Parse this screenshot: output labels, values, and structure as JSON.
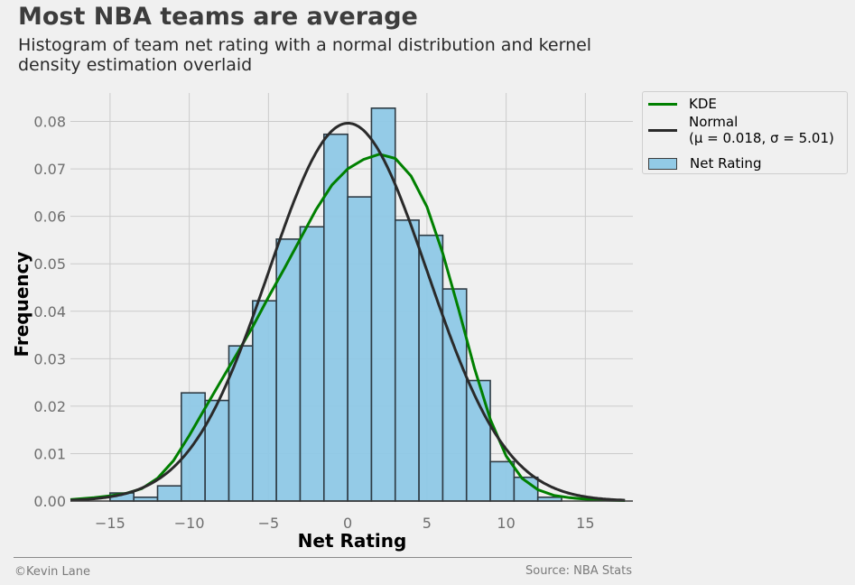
{
  "header": {
    "title": "Most NBA teams are average",
    "subtitle": "Histogram of team net rating with a normal distribution and kernel density estimation overlaid"
  },
  "footer": {
    "credit": "©Kevin Lane",
    "source": "Source: NBA Stats"
  },
  "legend": {
    "kde_label": "KDE",
    "normal_label_line1": "Normal",
    "normal_label_line2": "(μ = 0.018, σ = 5.01)",
    "hist_label": "Net Rating"
  },
  "chart_data": {
    "type": "bar",
    "xlabel": "Net Rating",
    "ylabel": "Frequency",
    "xlim": [
      -17.5,
      18
    ],
    "ylim": [
      0,
      0.086
    ],
    "x_ticks": [
      -15,
      -10,
      -5,
      0,
      5,
      10,
      15
    ],
    "x_tick_labels": [
      "−15",
      "−10",
      "−5",
      "0",
      "5",
      "10",
      "15"
    ],
    "y_ticks": [
      0,
      0.01,
      0.02,
      0.03,
      0.04,
      0.05,
      0.06,
      0.07,
      0.08
    ],
    "y_tick_labels": [
      "0.00",
      "0.01",
      "0.02",
      "0.03",
      "0.04",
      "0.05",
      "0.06",
      "0.07",
      "0.08"
    ],
    "grid": true,
    "legend_position": "outside-top-right",
    "colors": {
      "bar": "#8ec8e6",
      "bar_edge": "#2e3b44",
      "kde": "#008000",
      "normal": "#2a2a2a"
    },
    "bin_edges": [
      -15.0,
      -13.5,
      -12.0,
      -10.5,
      -9.0,
      -7.5,
      -6.0,
      -4.5,
      -3.0,
      -1.5,
      0.0,
      1.5,
      3.0,
      4.5,
      6.0,
      7.5,
      9.0,
      10.5,
      12.0,
      13.5
    ],
    "bin_values": [
      0.0017,
      0.0008,
      0.0032,
      0.0228,
      0.0212,
      0.0327,
      0.0422,
      0.0552,
      0.0578,
      0.0773,
      0.0641,
      0.0828,
      0.0592,
      0.056,
      0.0447,
      0.0254,
      0.0083,
      0.005,
      0.0008
    ],
    "normal": {
      "mu": 0.018,
      "sigma": 5.01
    },
    "kde": {
      "x": [
        -17.5,
        -16,
        -15,
        -14,
        -13,
        -12,
        -11,
        -10,
        -9,
        -8,
        -7,
        -6,
        -5,
        -4,
        -3,
        -2,
        -1,
        0,
        1,
        2,
        3,
        4,
        5,
        6,
        7,
        8,
        9,
        10,
        11,
        12,
        13,
        14,
        15,
        16,
        17.5
      ],
      "y": [
        0.0003,
        0.0007,
        0.0011,
        0.0016,
        0.0026,
        0.0048,
        0.0085,
        0.0138,
        0.0196,
        0.0253,
        0.031,
        0.0367,
        0.043,
        0.049,
        0.0552,
        0.0614,
        0.0666,
        0.07,
        0.072,
        0.0731,
        0.0722,
        0.0685,
        0.062,
        0.0522,
        0.0404,
        0.028,
        0.0172,
        0.0095,
        0.0048,
        0.0024,
        0.0012,
        0.0007,
        0.0004,
        0.0002,
        0.0001
      ]
    }
  }
}
